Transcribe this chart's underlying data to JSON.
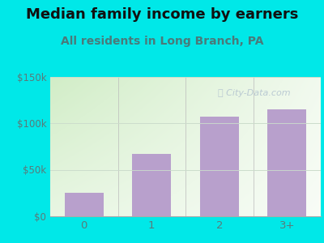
{
  "title": "Median family income by earners",
  "subtitle": "All residents in Long Branch, PA",
  "categories": [
    "0",
    "1",
    "2",
    "3+"
  ],
  "values": [
    25000,
    67000,
    107000,
    115000
  ],
  "bar_color": "#b8a0cc",
  "ylim": [
    0,
    150000
  ],
  "yticks": [
    0,
    50000,
    100000,
    150000
  ],
  "ytick_labels": [
    "$0",
    "$50k",
    "$100k",
    "$150k"
  ],
  "bg_outer": "#00e8e8",
  "plot_bg_topleft": "#d0ecc8",
  "plot_bg_topright": "#f0f8f0",
  "plot_bg_bottomleft": "#e8f5e0",
  "plot_bg_bottomright": "#ffffff",
  "title_color": "#111111",
  "subtitle_color": "#4a7a7a",
  "tick_color": "#5a7a7a",
  "title_fontsize": 13,
  "subtitle_fontsize": 10,
  "watermark": "City-Data.com",
  "watermark_color": "#aabbcc",
  "grid_color": "#ccddcc"
}
